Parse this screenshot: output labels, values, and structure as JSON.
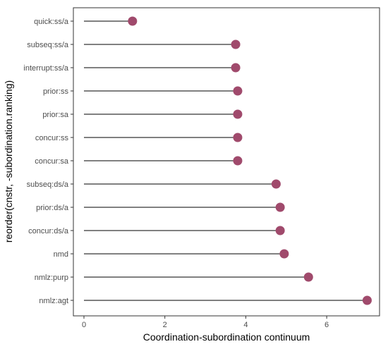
{
  "chart_data": {
    "type": "lollipop",
    "categories": [
      "quick:ss/a",
      "subseq:ss/a",
      "interrupt:ss/a",
      "prior:ss",
      "prior:sa",
      "concur:ss",
      "concur:sa",
      "subseq:ds/a",
      "prior:ds/a",
      "concur:ds/a",
      "nmd",
      "nmlz:purp",
      "nmlz:agt"
    ],
    "values": [
      1.2,
      3.75,
      3.75,
      3.8,
      3.8,
      3.8,
      3.8,
      4.75,
      4.85,
      4.85,
      4.95,
      5.55,
      7.0
    ],
    "title": "",
    "xlabel": "Coordination-subordination continuum",
    "ylabel": "reorder(cnstr, -subordination.ranking)",
    "xlim": [
      -0.25,
      7.25
    ],
    "xticks": [
      0,
      2,
      4,
      6
    ],
    "grid": false,
    "colors": {
      "point": "#a04a6c",
      "stem": "#000000",
      "panel_border": "#333333"
    }
  }
}
